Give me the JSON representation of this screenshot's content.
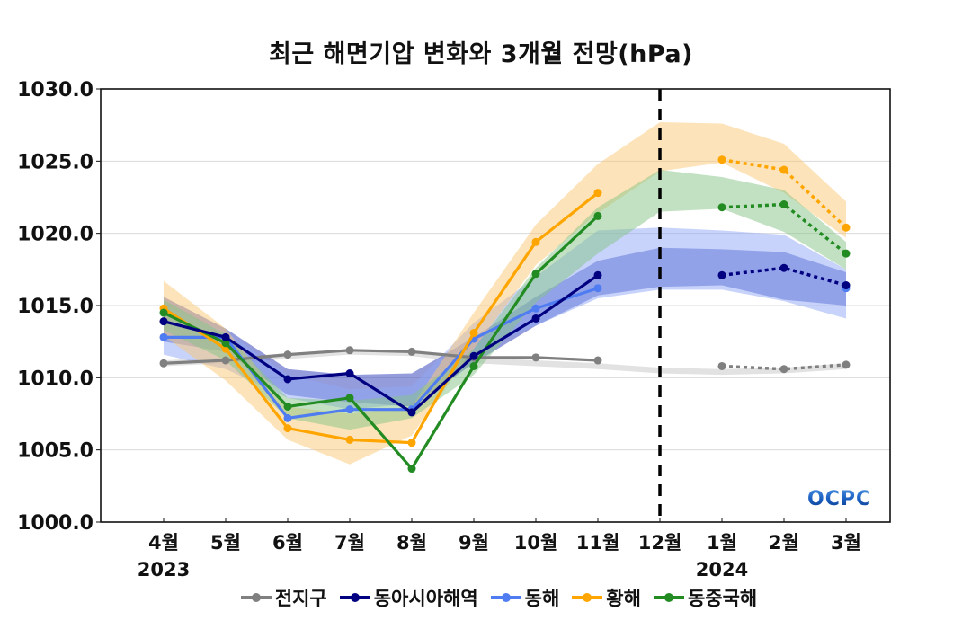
{
  "chart_data": {
    "type": "line",
    "title": "최근 해면기압 변화와 3개월 전망(hPa)",
    "xlabel": "",
    "ylabel": "",
    "ylim": [
      1000,
      1030
    ],
    "yticks": [
      1000,
      1005,
      1010,
      1015,
      1020,
      1025,
      1030
    ],
    "ytick_labels": [
      "1000.0",
      "1005.0",
      "1010.0",
      "1015.0",
      "1020.0",
      "1025.0",
      "1030.0"
    ],
    "categories": [
      "4월",
      "5월",
      "6월",
      "7월",
      "8월",
      "9월",
      "10월",
      "11월",
      "12월",
      "1월",
      "2월",
      "3월"
    ],
    "year_labels": [
      {
        "category_index": 0,
        "label": "2023"
      },
      {
        "category_index": 9,
        "label": "2024"
      }
    ],
    "forecast_divider_index": 8,
    "grid": "horizontal",
    "legend_position": "bottom",
    "watermark": "OCPC",
    "series": [
      {
        "name": "전지구",
        "color": "#808080",
        "band_color": "#bfbfbf",
        "observed": [
          1011.0,
          1011.2,
          1011.6,
          1011.9,
          1011.8,
          1011.4,
          1011.4,
          1011.2,
          null,
          null,
          null,
          null
        ],
        "forecast": [
          null,
          null,
          null,
          null,
          null,
          null,
          null,
          null,
          null,
          1010.8,
          1010.6,
          1010.9
        ],
        "band_lower": [
          1010.8,
          1011.0,
          1011.3,
          1011.6,
          1011.5,
          1011.0,
          1010.8,
          1010.6,
          1010.3,
          1010.2,
          1010.3,
          1010.6
        ],
        "band_upper": [
          1011.2,
          1011.4,
          1011.7,
          1011.9,
          1011.8,
          1011.4,
          1011.2,
          1011.0,
          1010.7,
          1010.6,
          1010.7,
          1011.0
        ]
      },
      {
        "name": "동아시아해역",
        "color": "#000080",
        "band_color": "#3c4bbf",
        "observed": [
          1013.9,
          1012.8,
          1009.9,
          1010.3,
          1007.6,
          1011.5,
          1014.1,
          1017.1,
          null,
          null,
          null,
          null
        ],
        "forecast": [
          null,
          null,
          null,
          null,
          null,
          null,
          null,
          null,
          null,
          1017.1,
          1017.6,
          1016.4
        ],
        "band_lower": [
          1012.5,
          1011.8,
          1008.8,
          1008.3,
          1008.0,
          1011.0,
          1013.6,
          1015.7,
          1016.3,
          1016.4,
          1015.4,
          1015.0
        ],
        "band_upper": [
          1015.6,
          1013.4,
          1010.6,
          1010.2,
          1010.3,
          1012.8,
          1015.6,
          1018.1,
          1019.0,
          1018.9,
          1018.7,
          1017.3
        ]
      },
      {
        "name": "동해",
        "color": "#4f7cf0",
        "band_color": "#8fa8f5",
        "observed": [
          1012.8,
          1012.8,
          1007.2,
          1007.8,
          1007.8,
          1012.7,
          1014.8,
          1016.2,
          null,
          null,
          null,
          null
        ],
        "forecast": [
          null,
          null,
          null,
          null,
          null,
          null,
          null,
          null,
          null,
          null,
          null,
          1016.2
        ],
        "band_lower": [
          1011.6,
          1010.6,
          1008.6,
          1007.8,
          1008.2,
          1011.8,
          1013.6,
          1015.5,
          1016.1,
          1016.1,
          1015.3,
          1014.1
        ],
        "band_upper": [
          1015.0,
          1013.2,
          1010.2,
          1009.2,
          1009.4,
          1013.8,
          1017.0,
          1020.2,
          1020.4,
          1020.2,
          1019.9,
          1017.5
        ]
      },
      {
        "name": "황해",
        "color": "#ffa500",
        "band_color": "#fcc874",
        "observed": [
          1014.8,
          1012.0,
          1006.5,
          1005.7,
          1005.5,
          1013.1,
          1019.4,
          1022.8,
          null,
          null,
          null,
          null
        ],
        "forecast": [
          null,
          null,
          null,
          null,
          null,
          null,
          null,
          null,
          null,
          1025.1,
          1024.4,
          1020.4
        ],
        "band_lower": [
          1012.9,
          1009.8,
          1005.7,
          1004.0,
          1006.0,
          1012.0,
          1017.8,
          1021.4,
          1024.3,
          1024.9,
          1022.8,
          1019.7
        ],
        "band_upper": [
          1016.7,
          1013.4,
          1008.0,
          1007.5,
          1008.0,
          1014.5,
          1020.6,
          1024.8,
          1027.7,
          1027.6,
          1026.2,
          1022.2
        ]
      },
      {
        "name": "동중국해",
        "color": "#228b22",
        "band_color": "#86c486",
        "observed": [
          1014.5,
          1012.4,
          1008.0,
          1008.6,
          1003.7,
          1010.8,
          1017.2,
          1021.2,
          null,
          null,
          null,
          null
        ],
        "forecast": [
          null,
          null,
          null,
          null,
          null,
          null,
          null,
          null,
          null,
          1021.8,
          1022.0,
          1018.6
        ],
        "band_lower": [
          1013.3,
          1011.2,
          1007.2,
          1006.4,
          1007.2,
          1010.2,
          1015.2,
          1018.6,
          1021.5,
          1021.7,
          1020.1,
          1017.5
        ],
        "band_upper": [
          1015.4,
          1013.0,
          1008.6,
          1008.4,
          1008.8,
          1012.0,
          1017.6,
          1021.8,
          1024.4,
          1023.9,
          1023.0,
          1019.4
        ]
      }
    ]
  }
}
